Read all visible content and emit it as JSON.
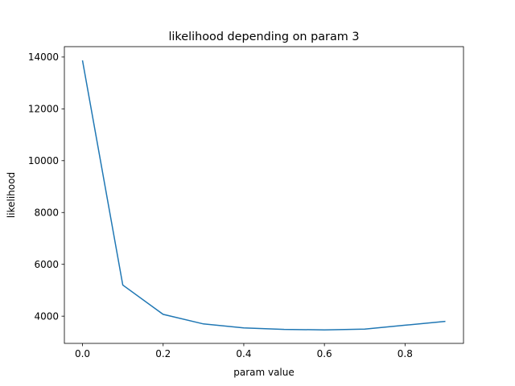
{
  "chart_data": {
    "type": "line",
    "title": "likelihood depending on param 3",
    "xlabel": "param value",
    "ylabel": "likelihood",
    "xlim": [
      -0.045,
      0.945
    ],
    "ylim": [
      2950,
      14400
    ],
    "xticks": [
      0.0,
      0.2,
      0.4,
      0.6,
      0.8
    ],
    "xtick_labels": [
      "0.0",
      "0.2",
      "0.4",
      "0.6",
      "0.8"
    ],
    "yticks": [
      4000,
      6000,
      8000,
      10000,
      12000,
      14000
    ],
    "ytick_labels": [
      "4000",
      "6000",
      "8000",
      "10000",
      "12000",
      "14000"
    ],
    "grid": false,
    "series": [
      {
        "color": "#1f77b4",
        "x": [
          0.0,
          0.1,
          0.2,
          0.3,
          0.4,
          0.5,
          0.6,
          0.7,
          0.8,
          0.9
        ],
        "y": [
          13870,
          5200,
          4070,
          3700,
          3550,
          3490,
          3470,
          3500,
          3650,
          3800
        ]
      }
    ]
  }
}
